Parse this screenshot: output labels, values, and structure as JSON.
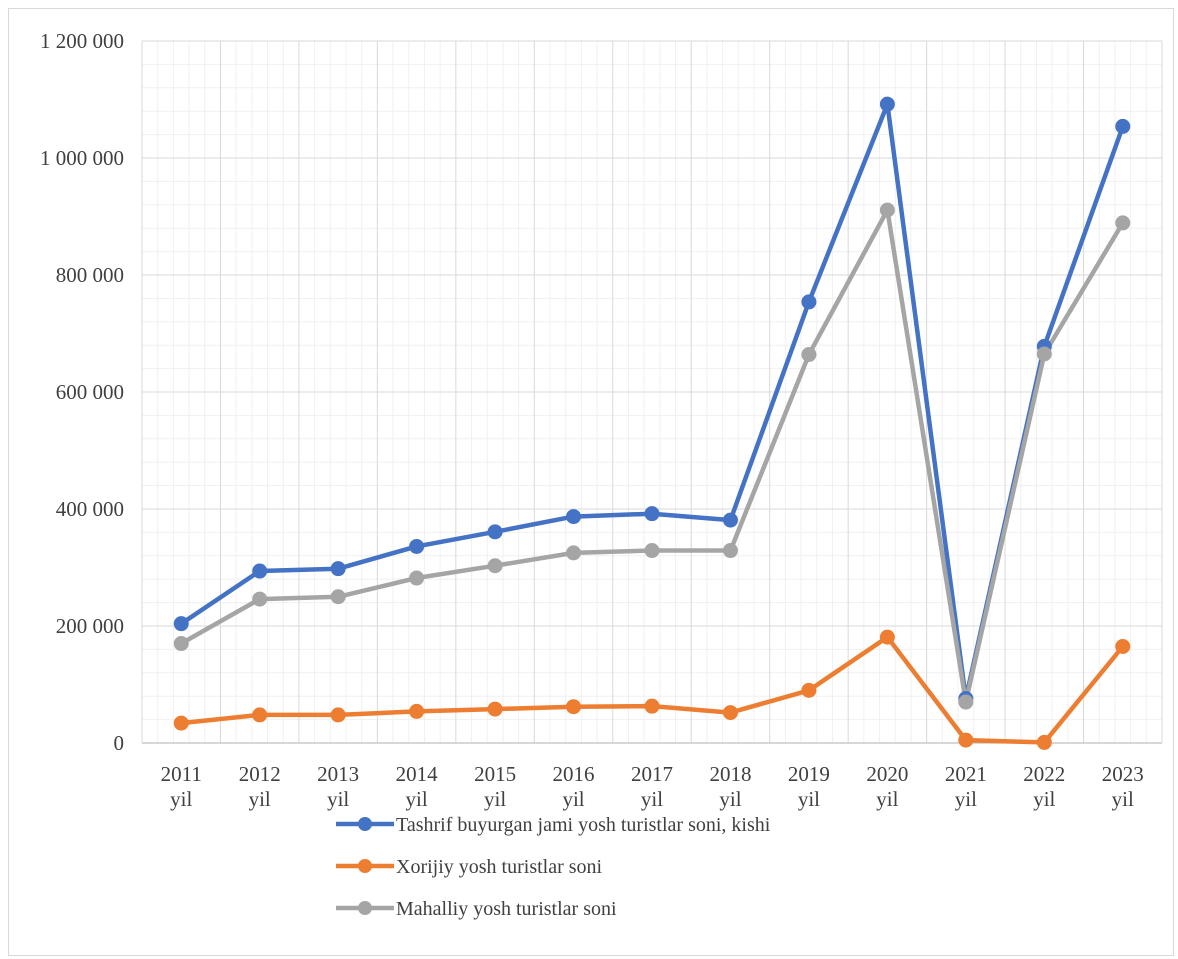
{
  "chart_data": {
    "type": "line",
    "title": "",
    "xlabel": "",
    "ylabel": "",
    "categories": [
      [
        "2011",
        "yil"
      ],
      [
        "2012",
        "yil"
      ],
      [
        "2013",
        "yil"
      ],
      [
        "2014",
        "yil"
      ],
      [
        "2015",
        "yil"
      ],
      [
        "2016",
        "yil"
      ],
      [
        "2017",
        "yil"
      ],
      [
        "2018",
        "yil"
      ],
      [
        "2019",
        "yil"
      ],
      [
        "2020",
        "yil"
      ],
      [
        "2021",
        "yil"
      ],
      [
        "2022",
        "yil"
      ],
      [
        "2023",
        "yil"
      ]
    ],
    "ylim": [
      0,
      1200000
    ],
    "y_major_ticks": [
      0,
      200000,
      400000,
      600000,
      800000,
      1000000,
      1200000
    ],
    "y_tick_labels": [
      "0",
      "200 000",
      "400 000",
      "600 000",
      "800 000",
      "1 000 000",
      "1 200 000"
    ],
    "y_minor_step": 40000,
    "grid": true,
    "legend_position": "bottom",
    "series": [
      {
        "name": "Tashrif buyurgan jami yosh turistlar soni, kishi",
        "color": "#4472c4",
        "values": [
          204000,
          294000,
          298000,
          336000,
          361000,
          387000,
          392000,
          381000,
          754000,
          1092000,
          76000,
          678000,
          1054000
        ]
      },
      {
        "name": "Xorijiy yosh turistlar soni",
        "color": "#ed7d31",
        "values": [
          34000,
          48000,
          48000,
          54000,
          58000,
          62000,
          63000,
          52000,
          90000,
          181000,
          5000,
          1000,
          165000
        ]
      },
      {
        "name": "Mahalliy yosh turistlar soni",
        "color": "#a5a5a5",
        "values": [
          170000,
          246000,
          250000,
          282000,
          303000,
          325000,
          329000,
          329000,
          664000,
          911000,
          70000,
          665000,
          889000
        ]
      }
    ]
  }
}
